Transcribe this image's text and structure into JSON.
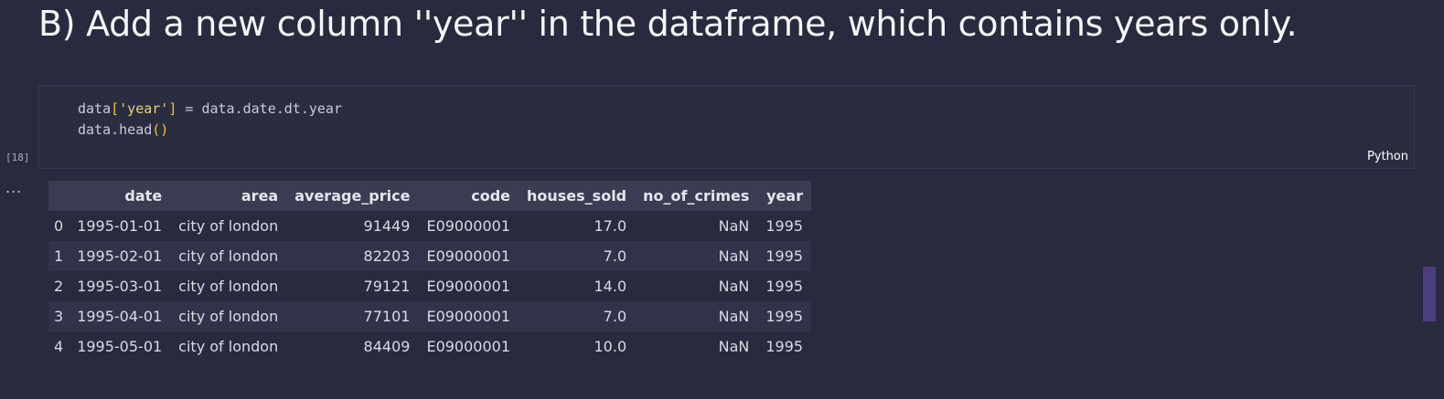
{
  "heading": "B) Add a new column ''year'' in the dataframe, which contains years only.",
  "cell": {
    "execution_count": "[18]",
    "language": "Python",
    "code_line1": {
      "var": "data",
      "open": "[",
      "key": "'year'",
      "close": "]",
      "rest": " = data.date.dt.year"
    },
    "code_line2": {
      "call": "data.head",
      "parens": "()"
    }
  },
  "output": {
    "ellipsis": "...",
    "columns": [
      "",
      "date",
      "area",
      "average_price",
      "code",
      "houses_sold",
      "no_of_crimes",
      "year"
    ],
    "rows": [
      [
        "0",
        "1995-01-01",
        "city of london",
        "91449",
        "E09000001",
        "17.0",
        "NaN",
        "1995"
      ],
      [
        "1",
        "1995-02-01",
        "city of london",
        "82203",
        "E09000001",
        "7.0",
        "NaN",
        "1995"
      ],
      [
        "2",
        "1995-03-01",
        "city of london",
        "79121",
        "E09000001",
        "14.0",
        "NaN",
        "1995"
      ],
      [
        "3",
        "1995-04-01",
        "city of london",
        "77101",
        "E09000001",
        "7.0",
        "NaN",
        "1995"
      ],
      [
        "4",
        "1995-05-01",
        "city of london",
        "84409",
        "E09000001",
        "10.0",
        "NaN",
        "1995"
      ]
    ]
  },
  "colors": {
    "background": "#282b3d",
    "string": "#e6d27a",
    "bracket": "#f0c61f",
    "scrollbar": "#4b3d7e"
  }
}
